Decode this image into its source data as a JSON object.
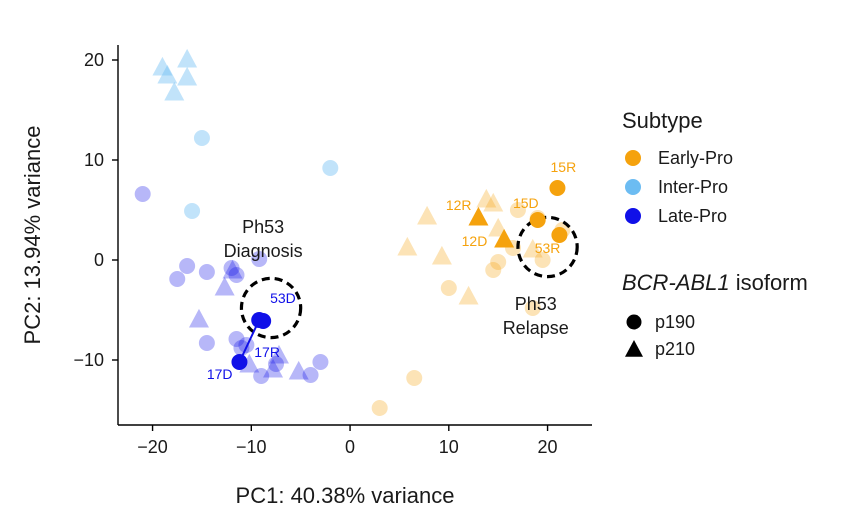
{
  "chart_data": {
    "type": "scatter",
    "xlabel": "PC1: 40.38% variance",
    "ylabel": "PC2: 13.94% variance",
    "xlim": [
      -23.5,
      24.5
    ],
    "ylim": [
      -16.5,
      21.5
    ],
    "xticks": [
      -20,
      -10,
      0,
      10,
      20
    ],
    "yticks": [
      20,
      10,
      0,
      -10
    ],
    "tick_labels_x": [
      "−20",
      "−10",
      "0",
      "10",
      "20"
    ],
    "tick_labels_y": [
      "20",
      "10",
      "0",
      "−10"
    ],
    "grid": false,
    "colors": {
      "Early-Pro": "#f5a20d",
      "Inter-Pro": "#6cbcf2",
      "Late-Pro": "#1010e8",
      "neutral": "#000000"
    },
    "legend": {
      "subtype_title": "Subtype",
      "subtypes": [
        "Early-Pro",
        "Inter-Pro",
        "Late-Pro"
      ],
      "isoform_title_italic": "BCR-ABL1",
      "isoform_title_rest": " isoform",
      "isoforms": [
        {
          "shape": "circle",
          "label": "p190"
        },
        {
          "shape": "triangle",
          "label": "p210"
        }
      ]
    },
    "annotations": [
      {
        "lines": [
          "Ph53",
          "Diagnosis"
        ],
        "x": -8.8,
        "y": 2.7
      },
      {
        "lines": [
          "Ph53",
          "Relapse"
        ],
        "x": 18.8,
        "y": -5.0
      }
    ],
    "circles": [
      {
        "x": -8.0,
        "y": -4.8,
        "r": 3.0
      },
      {
        "x": 20.0,
        "y": 1.3,
        "r": 3.0
      }
    ],
    "series": [
      {
        "name": "Early-Pro",
        "points": [
          {
            "x": 3.0,
            "y": -14.8,
            "shape": "circle"
          },
          {
            "x": 6.5,
            "y": -11.8,
            "shape": "circle"
          },
          {
            "x": 10.0,
            "y": -2.8,
            "shape": "circle"
          },
          {
            "x": 14.5,
            "y": -1.0,
            "shape": "circle"
          },
          {
            "x": 15.0,
            "y": -0.2,
            "shape": "circle"
          },
          {
            "x": 16.5,
            "y": 1.2,
            "shape": "circle"
          },
          {
            "x": 17.0,
            "y": 5.0,
            "shape": "circle"
          },
          {
            "x": 18.5,
            "y": -4.8,
            "shape": "circle"
          },
          {
            "x": 19.0,
            "y": 4.2,
            "shape": "circle"
          },
          {
            "x": 19.5,
            "y": 0.0,
            "shape": "circle"
          },
          {
            "x": 21.5,
            "y": 3.0,
            "shape": "circle"
          },
          {
            "x": 5.8,
            "y": 1.2,
            "shape": "triangle"
          },
          {
            "x": 7.8,
            "y": 4.3,
            "shape": "triangle"
          },
          {
            "x": 9.3,
            "y": 0.3,
            "shape": "triangle"
          },
          {
            "x": 12.0,
            "y": -3.7,
            "shape": "triangle"
          },
          {
            "x": 13.8,
            "y": 6.0,
            "shape": "triangle"
          },
          {
            "x": 14.5,
            "y": 5.6,
            "shape": "triangle"
          },
          {
            "x": 15.0,
            "y": 3.1,
            "shape": "triangle"
          },
          {
            "x": 18.5,
            "y": 1.0,
            "shape": "triangle"
          }
        ]
      },
      {
        "name": "Inter-Pro",
        "points": [
          {
            "x": -15.0,
            "y": 12.2,
            "shape": "circle"
          },
          {
            "x": -16.0,
            "y": 4.9,
            "shape": "circle"
          },
          {
            "x": -2.0,
            "y": 9.2,
            "shape": "circle"
          },
          {
            "x": -19.0,
            "y": 19.2,
            "shape": "triangle"
          },
          {
            "x": -18.5,
            "y": 18.4,
            "shape": "triangle"
          },
          {
            "x": -17.8,
            "y": 16.7,
            "shape": "triangle"
          },
          {
            "x": -16.5,
            "y": 20.0,
            "shape": "triangle"
          },
          {
            "x": -16.5,
            "y": 18.2,
            "shape": "triangle"
          }
        ]
      },
      {
        "name": "Late-Pro",
        "points": [
          {
            "x": -21.0,
            "y": 6.6,
            "shape": "circle"
          },
          {
            "x": -17.5,
            "y": -1.9,
            "shape": "circle"
          },
          {
            "x": -16.5,
            "y": -0.6,
            "shape": "circle"
          },
          {
            "x": -14.5,
            "y": -1.2,
            "shape": "circle"
          },
          {
            "x": -14.5,
            "y": -8.3,
            "shape": "circle"
          },
          {
            "x": -12.0,
            "y": -0.8,
            "shape": "circle"
          },
          {
            "x": -11.5,
            "y": -1.5,
            "shape": "circle"
          },
          {
            "x": -11.5,
            "y": -7.9,
            "shape": "circle"
          },
          {
            "x": -11.0,
            "y": -8.8,
            "shape": "circle"
          },
          {
            "x": -10.5,
            "y": -8.5,
            "shape": "circle"
          },
          {
            "x": -9.2,
            "y": 0.1,
            "shape": "circle"
          },
          {
            "x": -9.0,
            "y": -11.6,
            "shape": "circle"
          },
          {
            "x": -7.5,
            "y": -10.4,
            "shape": "circle"
          },
          {
            "x": -4.0,
            "y": -11.5,
            "shape": "circle"
          },
          {
            "x": -3.0,
            "y": -10.2,
            "shape": "circle"
          },
          {
            "x": -15.3,
            "y": -6.0,
            "shape": "triangle"
          },
          {
            "x": -12.7,
            "y": -2.8,
            "shape": "triangle"
          },
          {
            "x": -11.9,
            "y": -1.1,
            "shape": "triangle"
          },
          {
            "x": -10.2,
            "y": -10.5,
            "shape": "triangle"
          },
          {
            "x": -7.8,
            "y": -11.0,
            "shape": "triangle"
          },
          {
            "x": -7.2,
            "y": -9.6,
            "shape": "triangle"
          },
          {
            "x": -5.2,
            "y": -11.2,
            "shape": "triangle"
          }
        ]
      }
    ],
    "highlighted": [
      {
        "label": "15R",
        "subtype": "Early-Pro",
        "shape": "circle",
        "x": 21.0,
        "y": 7.2,
        "label_dx": 0.6,
        "label_dy": 1.6
      },
      {
        "label": "15D",
        "subtype": "Early-Pro",
        "shape": "circle",
        "x": 19.0,
        "y": 4.0,
        "label_dx": -1.2,
        "label_dy": 1.2
      },
      {
        "label": "12R",
        "subtype": "Early-Pro",
        "shape": "triangle",
        "x": 13.0,
        "y": 4.2,
        "label_dx": -2.0,
        "label_dy": 0.8
      },
      {
        "label": "12D",
        "subtype": "Early-Pro",
        "shape": "triangle",
        "x": 15.6,
        "y": 2.0,
        "label_dx": -3.0,
        "label_dy": -0.6
      },
      {
        "label": "53R",
        "subtype": "Early-Pro",
        "shape": "circle",
        "x": 21.2,
        "y": 2.5,
        "label_dx": -1.2,
        "label_dy": -1.8
      },
      {
        "label": "53D",
        "subtype": "Late-Pro",
        "shape": "circle",
        "x": -8.8,
        "y": -6.1,
        "label_dx": 2.0,
        "label_dy": 1.8
      },
      {
        "label": "17R",
        "subtype": "Late-Pro",
        "shape": "circle",
        "x": -9.2,
        "y": -6.0,
        "label_dx": 0.8,
        "label_dy": -3.7
      },
      {
        "label": "17D",
        "subtype": "Late-Pro",
        "shape": "circle",
        "x": -11.2,
        "y": -10.2,
        "label_dx": -2.0,
        "label_dy": -1.7
      }
    ]
  }
}
